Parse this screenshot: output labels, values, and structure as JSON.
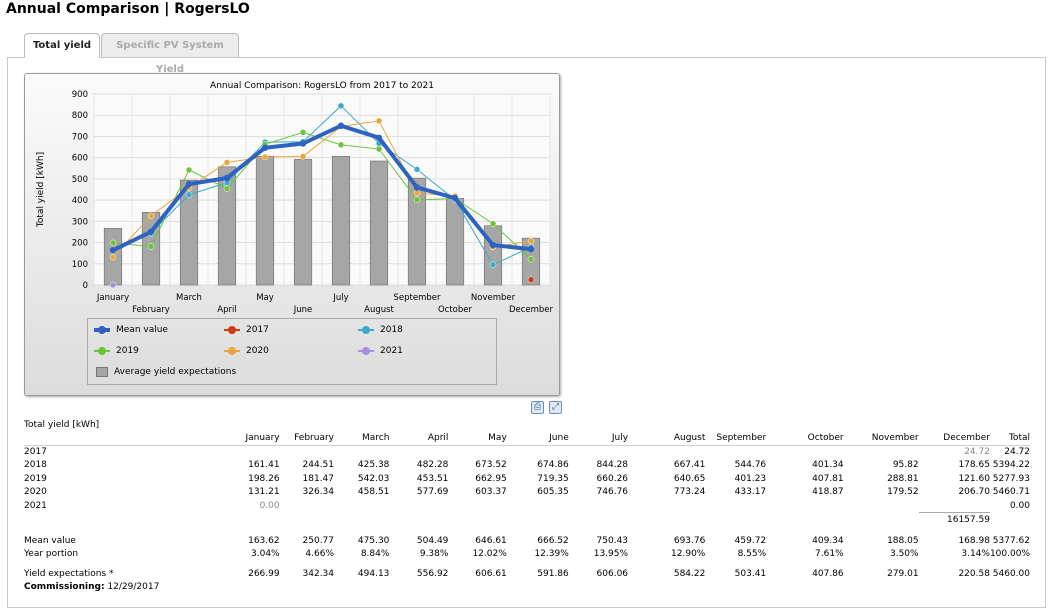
{
  "page": {
    "title": "Annual Comparison | RogersLO"
  },
  "tabs": [
    {
      "label": "Total yield",
      "active": true
    },
    {
      "label": "Specific PV System Yield",
      "active": false
    }
  ],
  "chart_data": {
    "type": "bar",
    "title": "Annual Comparison: RogersLO from 2017 to 2021",
    "ylabel": "Total yield [kWh]",
    "xlabel": "",
    "ylim": [
      0,
      900
    ],
    "yticks": [
      "0",
      "100",
      "200",
      "300",
      "400",
      "500",
      "600",
      "700",
      "800",
      "900"
    ],
    "grid": true,
    "categories": [
      "January",
      "February",
      "March",
      "April",
      "May",
      "June",
      "July",
      "August",
      "September",
      "October",
      "November",
      "December"
    ],
    "bars": {
      "name": "Average yield expectations",
      "values": [
        266.99,
        342.34,
        494.13,
        556.92,
        606.61,
        591.86,
        606.06,
        584.22,
        503.41,
        407.86,
        279.01,
        220.58
      ],
      "color": "#a6a6a6"
    },
    "series": [
      {
        "name": "Mean value",
        "color": "#2e62c0",
        "width": 4,
        "values": [
          163.62,
          250.77,
          475.3,
          504.49,
          646.61,
          666.52,
          750.43,
          693.76,
          459.72,
          409.34,
          188.05,
          168.98
        ]
      },
      {
        "name": "2017",
        "color": "#cc3a12",
        "width": 1,
        "values": [
          null,
          null,
          null,
          null,
          null,
          null,
          null,
          null,
          null,
          null,
          null,
          24.72
        ]
      },
      {
        "name": "2018",
        "color": "#3aaac8",
        "width": 1,
        "values": [
          161.41,
          244.51,
          425.38,
          482.28,
          673.52,
          674.86,
          844.28,
          667.41,
          544.76,
          401.34,
          95.82,
          178.65
        ]
      },
      {
        "name": "2019",
        "color": "#6cc33a",
        "width": 1,
        "values": [
          198.26,
          181.47,
          542.03,
          453.51,
          662.95,
          719.35,
          660.26,
          640.65,
          401.23,
          407.81,
          288.81,
          121.6
        ]
      },
      {
        "name": "2020",
        "color": "#eaa63a",
        "width": 1,
        "values": [
          131.21,
          326.34,
          458.51,
          577.69,
          603.37,
          605.35,
          746.76,
          773.24,
          433.17,
          418.87,
          179.52,
          206.7
        ]
      },
      {
        "name": "2021",
        "color": "#a58ee0",
        "width": 1,
        "values": [
          0.0,
          null,
          null,
          null,
          null,
          null,
          null,
          null,
          null,
          null,
          null,
          null
        ]
      }
    ],
    "legend": {
      "placement": "bottom"
    }
  },
  "legend_labels": {
    "mean": "Mean value",
    "y2017": "2017",
    "y2018": "2018",
    "y2019": "2019",
    "y2020": "2020",
    "y2021": "2021",
    "avg": "Average yield expectations"
  },
  "table": {
    "caption": "Total yield [kWh]",
    "headers": [
      "January",
      "February",
      "March",
      "April",
      "May",
      "June",
      "July",
      "August",
      "September",
      "October",
      "November",
      "December",
      "Total"
    ],
    "rows": [
      {
        "label": "2017",
        "cells": [
          "",
          "",
          "",
          "",
          "",
          "",
          "",
          "",
          "",
          "",
          "",
          "24.72",
          "24.72"
        ]
      },
      {
        "label": "2018",
        "cells": [
          "161.41",
          "244.51",
          "425.38",
          "482.28",
          "673.52",
          "674.86",
          "844.28",
          "667.41",
          "544.76",
          "401.34",
          "95.82",
          "178.65",
          "5394.22"
        ]
      },
      {
        "label": "2019",
        "cells": [
          "198.26",
          "181.47",
          "542.03",
          "453.51",
          "662.95",
          "719.35",
          "660.26",
          "640.65",
          "401.23",
          "407.81",
          "288.81",
          "121.60",
          "5277.93"
        ]
      },
      {
        "label": "2020",
        "cells": [
          "131.21",
          "326.34",
          "458.51",
          "577.69",
          "603.37",
          "605.35",
          "746.76",
          "773.24",
          "433.17",
          "418.87",
          "179.52",
          "206.70",
          "5460.71"
        ]
      },
      {
        "label": "2021",
        "cells": [
          "0.00",
          "",
          "",
          "",
          "",
          "",
          "",
          "",
          "",
          "",
          "",
          "",
          "0.00"
        ]
      }
    ],
    "grand_total": "16157.59",
    "mean": {
      "label": "Mean value",
      "cells": [
        "163.62",
        "250.77",
        "475.30",
        "504.49",
        "646.61",
        "666.52",
        "750.43",
        "693.76",
        "459.72",
        "409.34",
        "188.05",
        "168.98",
        "5377.62"
      ]
    },
    "portion": {
      "label": "Year portion",
      "cells": [
        "3.04%",
        "4.66%",
        "8.84%",
        "9.38%",
        "12.02%",
        "12.39%",
        "13.95%",
        "12.90%",
        "8.55%",
        "7.61%",
        "3.50%",
        "3.14%",
        "100.00%"
      ]
    },
    "expect": {
      "label": "Yield expectations *",
      "cells": [
        "266.99",
        "342.34",
        "494.13",
        "556.92",
        "606.61",
        "591.86",
        "606.06",
        "584.22",
        "503.41",
        "407.86",
        "279.01",
        "220.58",
        "5460.00"
      ]
    }
  },
  "commissioning": {
    "label": "Commissioning:",
    "date": "12/29/2017"
  }
}
